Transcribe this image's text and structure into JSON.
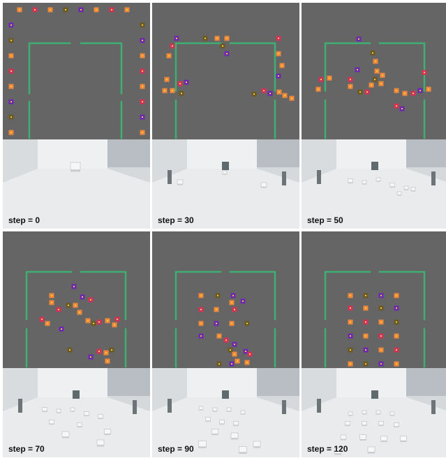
{
  "colors": {
    "background": "#656565",
    "wall": "#3fae73",
    "agent_orange": "#f08a3a",
    "agent_red": "#d2335a",
    "agent_purple": "#6d2ab0",
    "agent_olive": "#6b5a22",
    "agent_center": "#f6c34a"
  },
  "panels": [
    {
      "step_label": "step = 0"
    },
    {
      "step_label": "step = 30"
    },
    {
      "step_label": "step = 50"
    },
    {
      "step_label": "step = 70"
    },
    {
      "step_label": "step = 90"
    },
    {
      "step_label": "step = 120"
    }
  ]
}
